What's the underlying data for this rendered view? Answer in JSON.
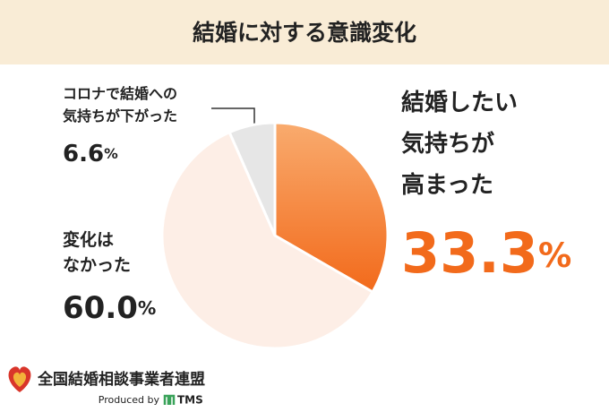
{
  "chart_data": {
    "type": "pie",
    "title": "結婚に対する意識変化",
    "categories": [
      "結婚したい\n気持ちが\n高まった",
      "変化は\nなかった",
      "コロナで結婚への\n気持ちが下がった"
    ],
    "values": [
      33.3,
      60.0,
      6.6
    ],
    "value_labels": [
      "33.3%",
      "60.0%",
      "6.6%"
    ],
    "colors": [
      "#f26a1b",
      "#fdeee6",
      "#e6e6e6"
    ]
  },
  "footer": {
    "organization": "全国結婚相談事業者連盟",
    "produced_by": "Produced by",
    "brand": "TMS"
  }
}
